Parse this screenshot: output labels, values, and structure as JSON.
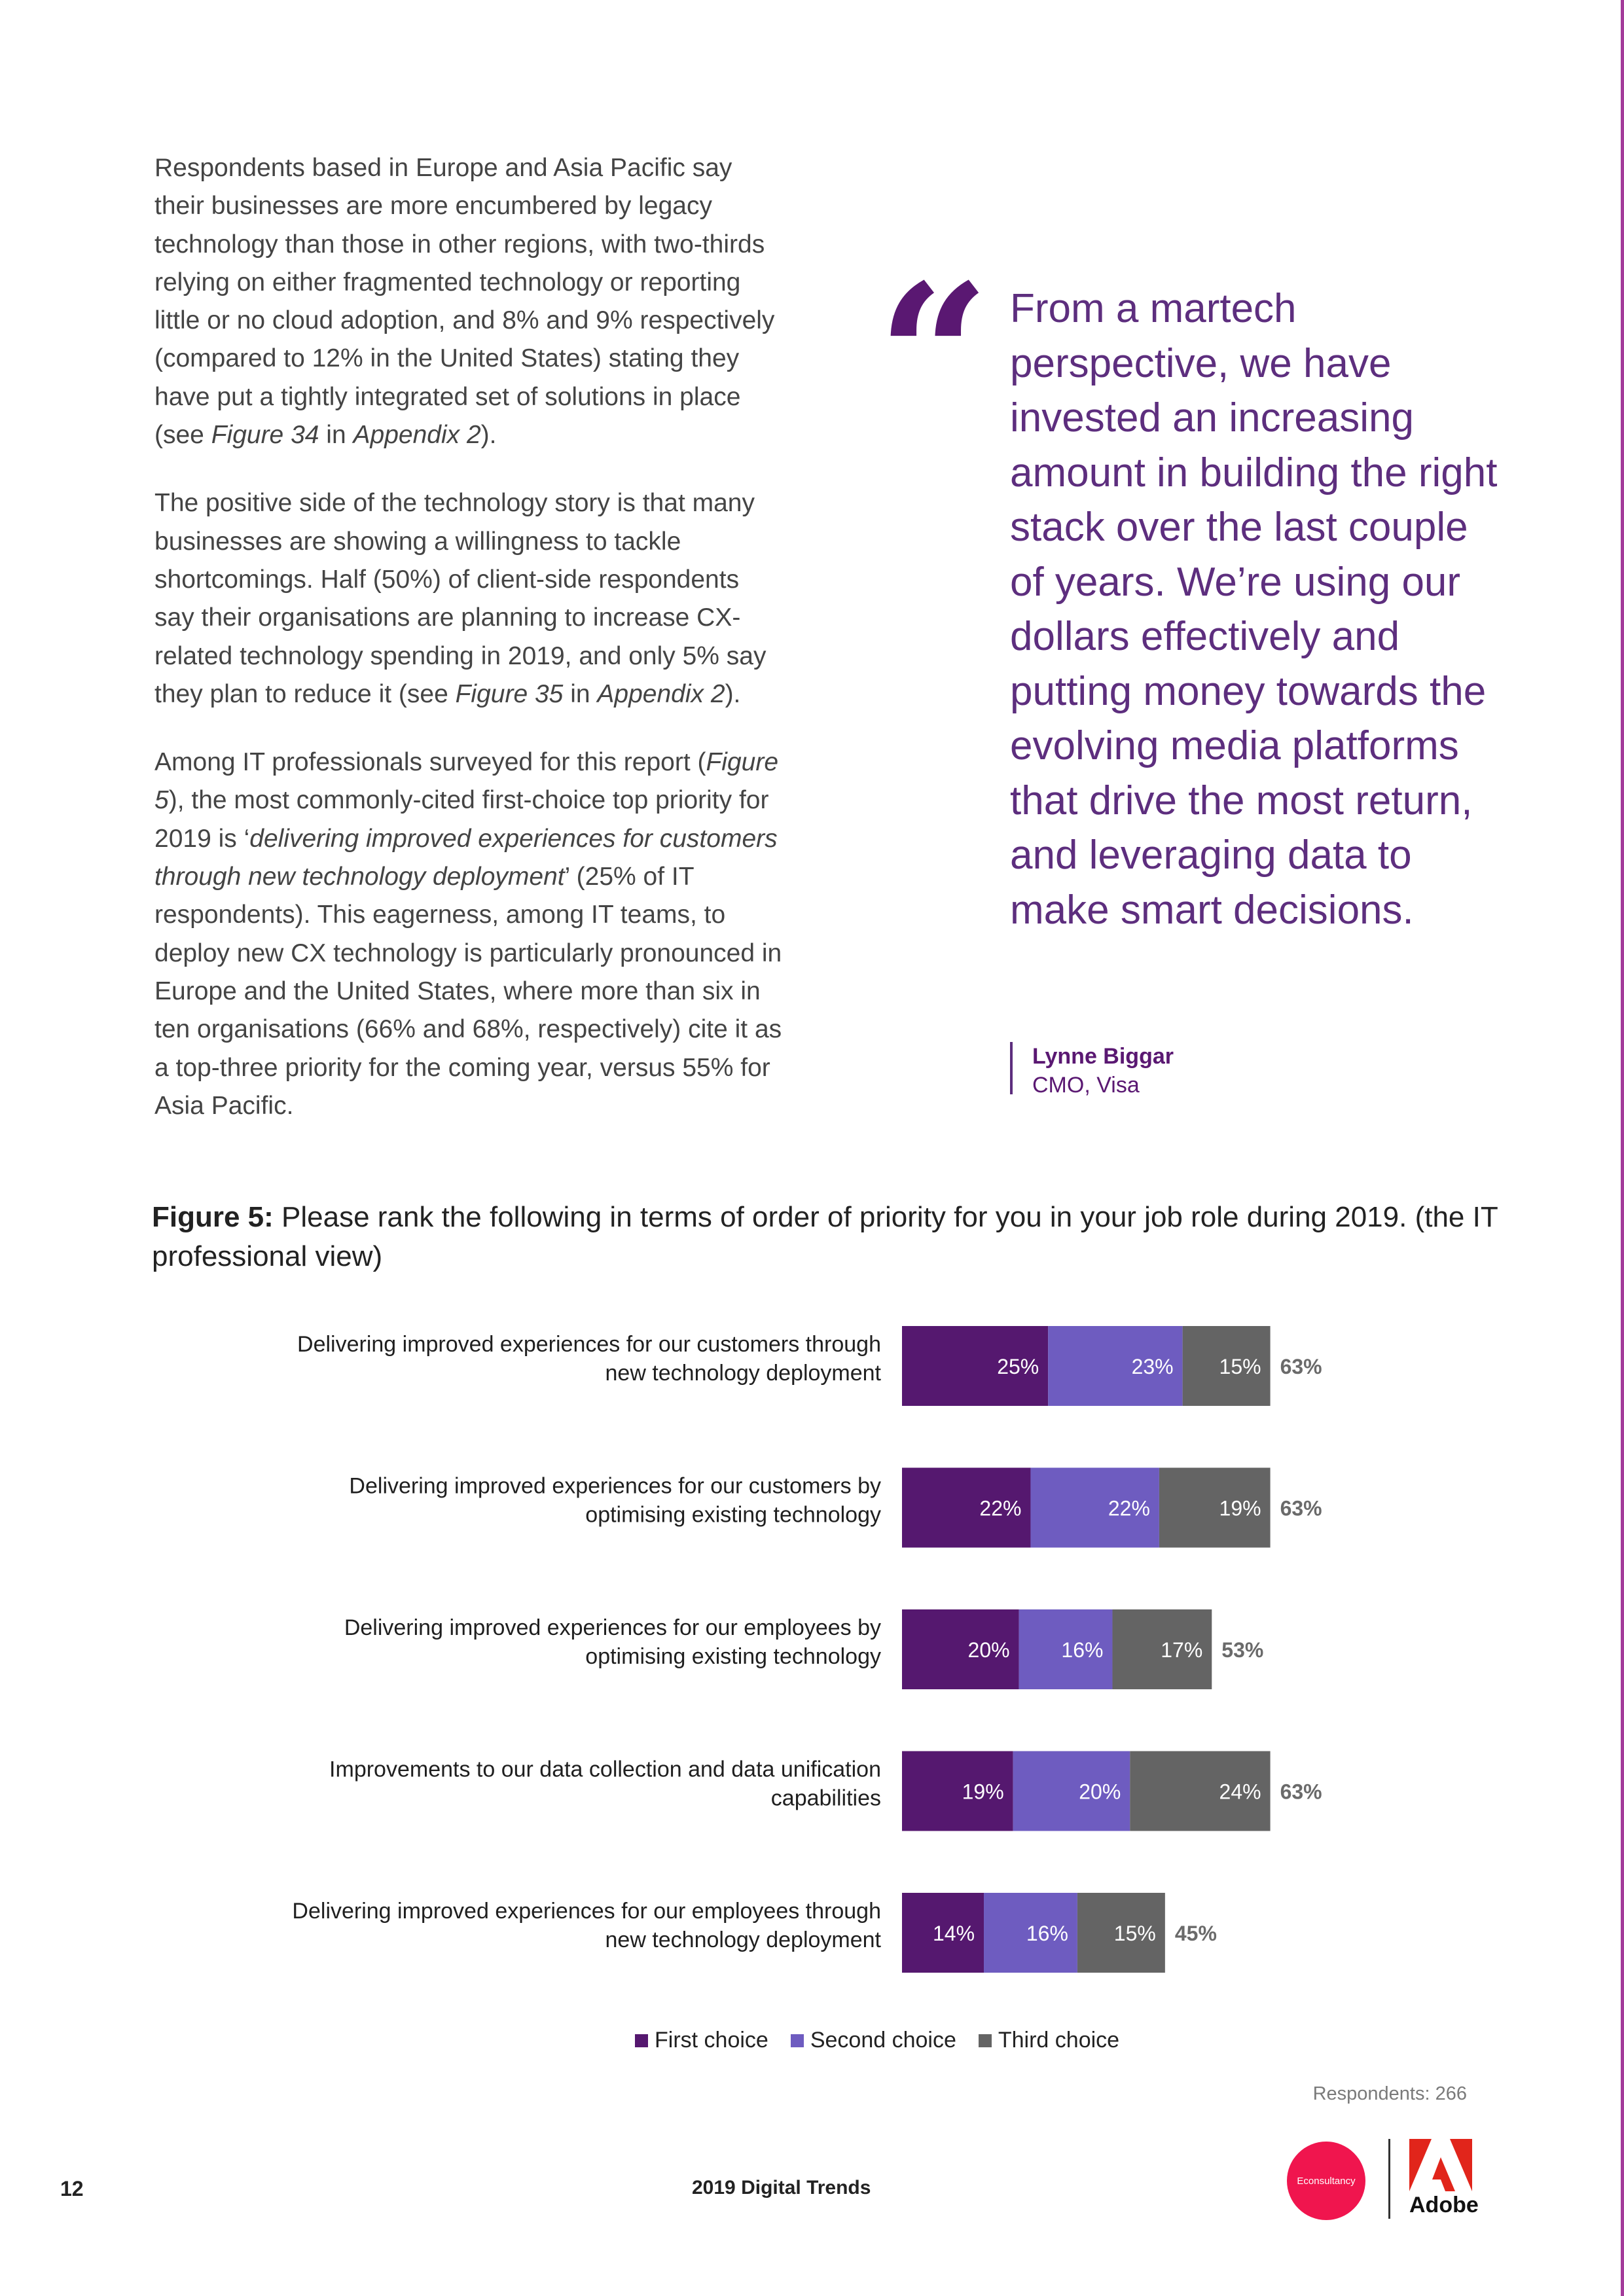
{
  "body": {
    "p1": {
      "a": "Respondents based in Europe and Asia Pacific say their businesses are more encumbered by legacy technology than those in other regions, with two-thirds relying on either fragmented technology or reporting little or no cloud adoption, and 8% and 9% respectively (compared to 12% in the United States) stating they have put a tightly integrated set of solutions in place (see ",
      "fig": "Figure 34",
      "in": " in ",
      "app": "Appendix 2",
      "end": ")."
    },
    "p2": {
      "a": "The positive side of the technology story is that many businesses are showing a willingness to tackle shortcomings. Half (50%) of client-side respondents say their organisations are planning to increase CX-related technology spending in 2019, and only 5% say they plan to reduce it (see ",
      "fig": "Figure 35",
      "in": " in ",
      "app": "Appendix 2",
      "end": ")."
    },
    "p3": {
      "a": "Among IT professionals surveyed for this report (",
      "fig": "Figure 5",
      "b": "), the most commonly-cited first-choice top priority for 2019 is ‘",
      "quote": "delivering improved experiences for customers through new technology deployment",
      "c": "’ (25% of IT respondents). This eagerness, among IT teams, to deploy new CX technology is particularly pronounced in Europe and the United States, where more than six in ten organisations (66% and 68%, respectively) cite it as a top-three priority for the coming year, versus 55% for Asia Pacific."
    }
  },
  "pull_quote": {
    "mark": "“",
    "text": "From a martech perspective, we have invested an increasing amount in building the right stack over the last couple of years. We’re using our dollars effectively and putting money towards the evolving media platforms that drive the most return, and leveraging data to make smart decisions.",
    "name": "Lynne Biggar",
    "role": "CMO, Visa"
  },
  "figure": {
    "label": "Figure 5:",
    "title": " Please rank the following in terms of order of priority for you in your job role during 2019. (the IT professional view)"
  },
  "chart_data": {
    "type": "bar",
    "orientation": "horizontal",
    "stacked": true,
    "categories": [
      [
        "Delivering improved experiences for our customers through",
        "new technology deployment"
      ],
      [
        "Delivering improved experiences for our customers by",
        "optimising existing technology"
      ],
      [
        "Delivering improved experiences for our employees by",
        "optimising existing technology"
      ],
      [
        "Improvements to our data collection and data unification",
        "capabilities"
      ],
      [
        "Delivering improved experiences for our employees through",
        "new technology deployment"
      ]
    ],
    "series": [
      {
        "name": "First choice",
        "color": "#55186f",
        "values": [
          25,
          22,
          20,
          19,
          14
        ]
      },
      {
        "name": "Second choice",
        "color": "#6e5cc0",
        "values": [
          23,
          22,
          16,
          20,
          16
        ]
      },
      {
        "name": "Third choice",
        "color": "#646464",
        "values": [
          15,
          19,
          17,
          24,
          15
        ]
      }
    ],
    "totals": [
      "63%",
      "63%",
      "53%",
      "63%",
      "45%"
    ],
    "value_suffix": "%",
    "legend_position": "bottom",
    "grid": false
  },
  "respondents": "Respondents: 266",
  "footer": {
    "page_number": "12",
    "report_title": "2019 Digital Trends",
    "econsultancy": "Econsultancy",
    "adobe": "Adobe"
  },
  "colors": {
    "accent_purple": "#5a1872",
    "quote_purple": "#5d2e7e",
    "edge_magenta": "#a33b9a",
    "econsultancy_red": "#f0154e",
    "adobe_red": "#e1251b"
  }
}
